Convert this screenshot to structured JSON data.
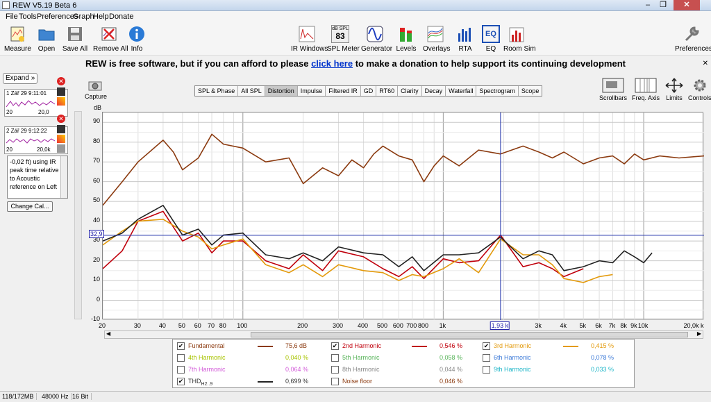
{
  "window": {
    "title": "REW V5.19 Beta 6"
  },
  "menu": [
    "File",
    "Tools",
    "Preferences",
    "Graph",
    "Help",
    "Donate"
  ],
  "toolbar": {
    "left": [
      "Measure",
      "Open",
      "Save All",
      "Remove All",
      "Info"
    ],
    "center": [
      "IR Windows",
      "SPL Meter",
      "Generator",
      "Levels",
      "Overlays",
      "RTA",
      "EQ",
      "Room Sim"
    ],
    "spl_icon_top": "dB SPL",
    "spl_icon_value": "83",
    "right": "Preferences"
  },
  "donate_banner": {
    "text_before": "REW is free software, but if you can afford to please ",
    "link": "click here",
    "text_after": " to make a donation to help support its continuing development"
  },
  "left_panel": {
    "expand": "Expand",
    "measurements": [
      {
        "label": "1 Zář 29 9:11:01",
        "axis_min": "20",
        "axis_max": "20,0"
      },
      {
        "label": "2 Zář 29 9:12:22",
        "axis_min": "20",
        "axis_max": "20,0k"
      }
    ],
    "info_text": "-0,02 ft) using IR peak time relative to Acoustic reference on Left",
    "change_cal": "Change Cal..."
  },
  "capture": "Capture",
  "tabs": [
    "SPL & Phase",
    "All SPL",
    "Distortion",
    "Impulse",
    "Filtered IR",
    "GD",
    "RT60",
    "Clarity",
    "Decay",
    "Waterfall",
    "Spectrogram",
    "Scope"
  ],
  "active_tab": "Distortion",
  "graph_tools": [
    "Scrollbars",
    "Freq. Axis",
    "Limits",
    "Controls"
  ],
  "cursor": {
    "y_value": "32,9",
    "x_value": "1,93 k"
  },
  "legend": [
    [
      {
        "name": "Fundamental",
        "checked": true,
        "value": "75,6 dB",
        "color": "#8B3A0F"
      },
      {
        "name": "2nd Harmonic",
        "checked": true,
        "value": "0,546 %",
        "color": "#C0000C"
      },
      {
        "name": "3rd Harmonic",
        "checked": true,
        "value": "0,415 %",
        "color": "#E39A0C"
      }
    ],
    [
      {
        "name": "4th Harmonic",
        "checked": false,
        "value": "0,040 %",
        "color": "#A8C400"
      },
      {
        "name": "5th Harmonic",
        "checked": false,
        "value": "0,058 %",
        "color": "#58B45A"
      },
      {
        "name": "6th Harmonic",
        "checked": false,
        "value": "0,078 %",
        "color": "#3D7BD8"
      }
    ],
    [
      {
        "name": "7th Harmonic",
        "checked": false,
        "value": "0,064 %",
        "color": "#D25AD8"
      },
      {
        "name": "8th Harmonic",
        "checked": false,
        "value": "0,044 %",
        "color": "#888888"
      },
      {
        "name": "9th Harmonic",
        "checked": false,
        "value": "0,033 %",
        "color": "#1FB6C8"
      }
    ],
    [
      {
        "name": "THD",
        "sub": "H2..9",
        "checked": true,
        "value": "0,699 %",
        "color": "#222222"
      },
      {
        "name": "Noise floor",
        "checked": false,
        "value": "0,046 %",
        "color": "#8B3A0F"
      }
    ]
  ],
  "status": {
    "memory": "118/172MB",
    "rate": "48000 Hz",
    "bits": "16 Bit"
  },
  "chart_data": {
    "type": "line",
    "ylabel": "dB",
    "x_scale": "log",
    "xlim": [
      20,
      20000
    ],
    "ylim": [
      -10,
      95
    ],
    "y_ticks": [
      90,
      80,
      70,
      60,
      50,
      40,
      30,
      20,
      10,
      0,
      -10
    ],
    "x_ticks": [
      "20",
      "30",
      "40",
      "50",
      "60",
      "70",
      "80",
      "100",
      "200",
      "300",
      "400",
      "500",
      "600",
      "700",
      "800",
      "1k",
      "3k",
      "4k",
      "5k",
      "6k",
      "7k",
      "8k",
      "9k",
      "10k",
      "20,0k k"
    ],
    "x_tick_values": [
      20,
      30,
      40,
      50,
      60,
      70,
      80,
      100,
      200,
      300,
      400,
      500,
      600,
      700,
      800,
      1000,
      3000,
      4000,
      5000,
      6000,
      7000,
      8000,
      9000,
      10000,
      20000
    ],
    "grid": true,
    "cursor_x": 1930,
    "cursor_y": 32.9,
    "series": [
      {
        "name": "Fundamental",
        "color": "#8B3A0F",
        "x": [
          20,
          25,
          30,
          40,
          45,
          50,
          60,
          70,
          80,
          100,
          130,
          170,
          200,
          250,
          300,
          350,
          400,
          450,
          500,
          600,
          700,
          800,
          900,
          1000,
          1200,
          1500,
          1930,
          2500,
          3000,
          3500,
          4000,
          5000,
          6000,
          7000,
          8000,
          9000,
          10000,
          12000,
          15000,
          20000
        ],
        "y": [
          48,
          60,
          70,
          81,
          75,
          66,
          72,
          84,
          79,
          77,
          70,
          72,
          59,
          67,
          63,
          71,
          67,
          74,
          78,
          73,
          71,
          60,
          68,
          73,
          68,
          76,
          74,
          78,
          75,
          72,
          75,
          69,
          72,
          73,
          69,
          74,
          71,
          73,
          72,
          73
        ]
      },
      {
        "name": "2nd Harmonic",
        "color": "#C0000C",
        "x": [
          20,
          25,
          30,
          40,
          50,
          60,
          70,
          80,
          100,
          130,
          170,
          200,
          250,
          300,
          400,
          500,
          600,
          700,
          800,
          1000,
          1200,
          1500,
          1930,
          2500,
          3000,
          3500,
          4000,
          5000
        ],
        "y": [
          16,
          25,
          40,
          45,
          30,
          34,
          24,
          30,
          30,
          20,
          16,
          23,
          15,
          25,
          22,
          16,
          12,
          17,
          11,
          21,
          19,
          20,
          33,
          17,
          19,
          16,
          12,
          16
        ]
      },
      {
        "name": "3rd Harmonic",
        "color": "#E39A0C",
        "x": [
          20,
          25,
          30,
          40,
          50,
          60,
          70,
          80,
          100,
          130,
          170,
          200,
          250,
          300,
          400,
          500,
          600,
          700,
          800,
          1000,
          1200,
          1500,
          1930,
          2500,
          3000,
          3500,
          4000,
          5000,
          6000,
          7000
        ],
        "y": [
          28,
          35,
          40,
          41,
          35,
          32,
          26,
          28,
          31,
          18,
          14,
          18,
          12,
          18,
          15,
          14,
          10,
          13,
          12,
          16,
          21,
          14,
          31,
          23,
          23,
          18,
          11,
          9,
          12,
          13
        ]
      },
      {
        "name": "THD",
        "color": "#222222",
        "x": [
          20,
          25,
          30,
          40,
          50,
          60,
          70,
          80,
          100,
          130,
          170,
          200,
          250,
          300,
          400,
          500,
          600,
          700,
          800,
          1000,
          1200,
          1500,
          1930,
          2500,
          3000,
          3500,
          4000,
          5000,
          6000,
          7000,
          8000,
          9000,
          10000,
          11000
        ],
        "y": [
          30,
          34,
          41,
          48,
          33,
          36,
          28,
          33,
          34,
          23,
          21,
          24,
          20,
          27,
          24,
          23,
          17,
          22,
          15,
          23,
          23,
          24,
          32,
          21,
          25,
          23,
          15,
          17,
          20,
          19,
          25,
          22,
          19,
          24
        ]
      }
    ]
  }
}
